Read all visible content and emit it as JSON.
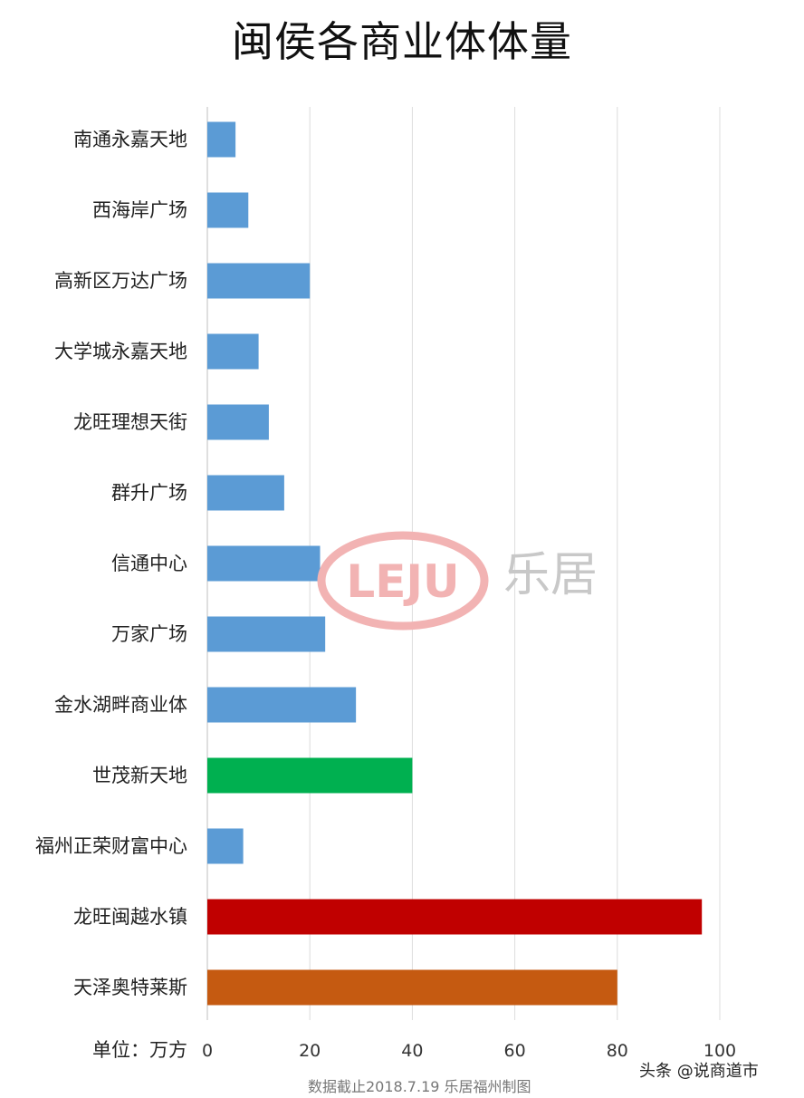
{
  "chart_data": {
    "type": "bar",
    "orientation": "horizontal",
    "title": "闽侯各商业体体量",
    "unit_label": "单位：万方",
    "categories": [
      "南通永嘉天地",
      "西海岸广场",
      "高新区万达广场",
      "大学城永嘉天地",
      "龙旺理想天街",
      "群升广场",
      "信通中心",
      "万家广场",
      "金水湖畔商业体",
      "世茂新天地",
      "福州正荣财富中心",
      "龙旺闽越水镇",
      "天泽奥特莱斯"
    ],
    "values": [
      5.5,
      8,
      20,
      10,
      12,
      15,
      22,
      23,
      29,
      40,
      7,
      96.5,
      80
    ],
    "colors": [
      "#5b9bd5",
      "#5b9bd5",
      "#5b9bd5",
      "#5b9bd5",
      "#5b9bd5",
      "#5b9bd5",
      "#5b9bd5",
      "#5b9bd5",
      "#5b9bd5",
      "#00b050",
      "#5b9bd5",
      "#c00000",
      "#c55a11"
    ],
    "xlim": [
      0,
      100
    ],
    "xticks": [
      "0",
      "20",
      "40",
      "60",
      "80",
      "100"
    ],
    "grid": true,
    "legend": "none"
  },
  "footnote": "数据截止2018.7.19  乐居福州制图",
  "byline": "头条 @说商道市",
  "watermark": {
    "logo": "LEJU",
    "text": "乐居"
  }
}
